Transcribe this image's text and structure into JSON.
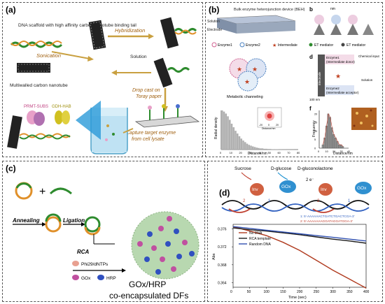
{
  "panels": {
    "a": {
      "label": "(a)",
      "scaffold_text": "DNA scaffold with high affinity carbon nanotube binding tail",
      "nanotube_text": "Multiwalled carbon nanotube",
      "hybridization": "Hybridization",
      "sonication": "Sonication",
      "solution": "Solution",
      "drop_cast": "Drop cast on",
      "toray": "Toray paper",
      "capture1": "Capture target enzyme",
      "capture2": "from cell lysate",
      "enzyme1": "PRMT-SUBS",
      "enzyme2": "GDH-HAB"
    },
    "b": {
      "label": "(b)",
      "device_title": "Bulk enzyme heterojunction device (BEH)",
      "solution": "Solution",
      "electrode": "Electrode",
      "sub_b": "b",
      "nm": "nm",
      "legend": [
        "Enzyme1",
        "Enzyme2",
        "Intermediate",
        "ET mediator",
        "ET mediator"
      ],
      "channeling": "Metabolic channeling",
      "sub_d": "d",
      "d_enzyme1": "Enzyme1",
      "d_intermediate1": "(Intermediate donor)",
      "d_enzyme2": "Enzyme2",
      "d_intermediate2": "(Intermediate acceptor)",
      "d_chemical": "Chemical input",
      "d_electrode": "Electrode",
      "d_solution": "Solution",
      "d_scale": "100 nm",
      "sub_f": "f",
      "hist1_ylabel": "Radial density",
      "hist1_xlabel": "Distance/nm",
      "hist2_ylabel": "Frequency",
      "hist2_xlabel": "Distance/nm",
      "hist1_ticks": [
        "0",
        "10",
        "20",
        "30",
        "40",
        "50",
        "60",
        "70",
        "80"
      ],
      "hist2_ticks": [
        "0",
        "5",
        "10",
        "15",
        "20",
        "25",
        "30",
        "35",
        "40"
      ],
      "hist2_yticks": [
        "0",
        "5",
        "10",
        "15",
        "20"
      ],
      "inset_ticks": [
        "-20",
        "0",
        "20"
      ],
      "inset_xlabel": "Distance/nm"
    },
    "c": {
      "label": "(c)",
      "plus": "+",
      "annealing": "Annealing",
      "ligation": "Ligation",
      "rca": "RCA",
      "phi29": "Phi29/dNTPs",
      "gox": "GOx",
      "hrp": "HRP",
      "result1": "GOx/HRP",
      "result2": "co-encapsulated DFs"
    },
    "d": {
      "label": "(d)",
      "sucrose": "Sucrose",
      "glucose": "D-glucose",
      "gluconolactone": "D-gluconolactone",
      "inv1": "Inv",
      "gox1": "GOx",
      "inv2": "Inv",
      "gox2": "GOx",
      "electrons": "2 e⁻",
      "num1": "1",
      "num2": "2",
      "num3": "1",
      "num4": "2",
      "seq1": "1: 5'-AAAAAACTGATCTGACTCGA-3'",
      "seq2": "2: 5'-AAAAAAAGGATAGGATGGA-3'"
    }
  },
  "colors": {
    "dna_orange": "#e0902a",
    "dna_green": "#2e8b2e",
    "nanotube": "#333333",
    "enzyme_pink": "#e8a0c8",
    "enzyme_blue": "#4a6fd0",
    "arrow_gold": "#c9a040",
    "no_dna": "#b03a1e",
    "rca_template": "#1a1a1a",
    "random_dna": "#3050b0"
  },
  "chart_data": [
    {
      "type": "bar",
      "panel": "b-left-histogram",
      "xlabel": "Distance/nm",
      "ylabel": "Radial density",
      "xlim": [
        0,
        80
      ],
      "x": [
        2,
        4,
        6,
        8,
        10,
        12,
        14,
        16,
        18,
        20,
        22,
        24,
        26,
        28,
        30,
        32,
        34,
        36,
        38,
        40,
        44,
        48,
        52,
        56,
        60,
        64,
        68,
        72,
        76,
        80
      ],
      "values": [
        1.0,
        0.97,
        0.92,
        0.85,
        0.76,
        0.66,
        0.57,
        0.48,
        0.41,
        0.34,
        0.28,
        0.23,
        0.19,
        0.15,
        0.12,
        0.1,
        0.08,
        0.065,
        0.05,
        0.04,
        0.03,
        0.02,
        0.015,
        0.01,
        0.008,
        0.005,
        0.004,
        0.003,
        0.002,
        0.001
      ]
    },
    {
      "type": "bar",
      "panel": "b-right-histogram",
      "xlabel": "Distance/nm",
      "ylabel": "Frequency",
      "xlim": [
        0,
        40
      ],
      "ylim": [
        0,
        22
      ],
      "x": [
        5,
        7.5,
        10,
        12.5,
        15,
        17.5,
        20,
        22.5,
        25,
        27.5,
        30,
        32.5
      ],
      "values": [
        2,
        6,
        13,
        20,
        18,
        12,
        8,
        6,
        4,
        2,
        2,
        1
      ]
    },
    {
      "type": "line",
      "panel": "d-kinetics",
      "xlabel": "Time (sec)",
      "ylabel": "Abs",
      "xlim": [
        0,
        400
      ],
      "ylim": [
        0.363,
        0.377
      ],
      "x_ticks": [
        0,
        50,
        100,
        150,
        200,
        250,
        300,
        350,
        400
      ],
      "y_ticks": [
        0.364,
        0.368,
        0.372,
        0.376
      ],
      "x": [
        0,
        50,
        100,
        150,
        200,
        250,
        300,
        350,
        400
      ],
      "series": [
        {
          "name": "No DNA",
          "values": [
            0.3765,
            0.3755,
            0.3745,
            0.373,
            0.3712,
            0.369,
            0.3668,
            0.3648,
            0.3628
          ]
        },
        {
          "name": "RCA template",
          "values": [
            0.3762,
            0.3758,
            0.3755,
            0.3751,
            0.3747,
            0.3742,
            0.3737,
            0.3733,
            0.3728
          ]
        },
        {
          "name": "Random DNA",
          "values": [
            0.3765,
            0.3761,
            0.3757,
            0.3753,
            0.3749,
            0.3745,
            0.3741,
            0.3737,
            0.3733
          ]
        }
      ]
    }
  ]
}
